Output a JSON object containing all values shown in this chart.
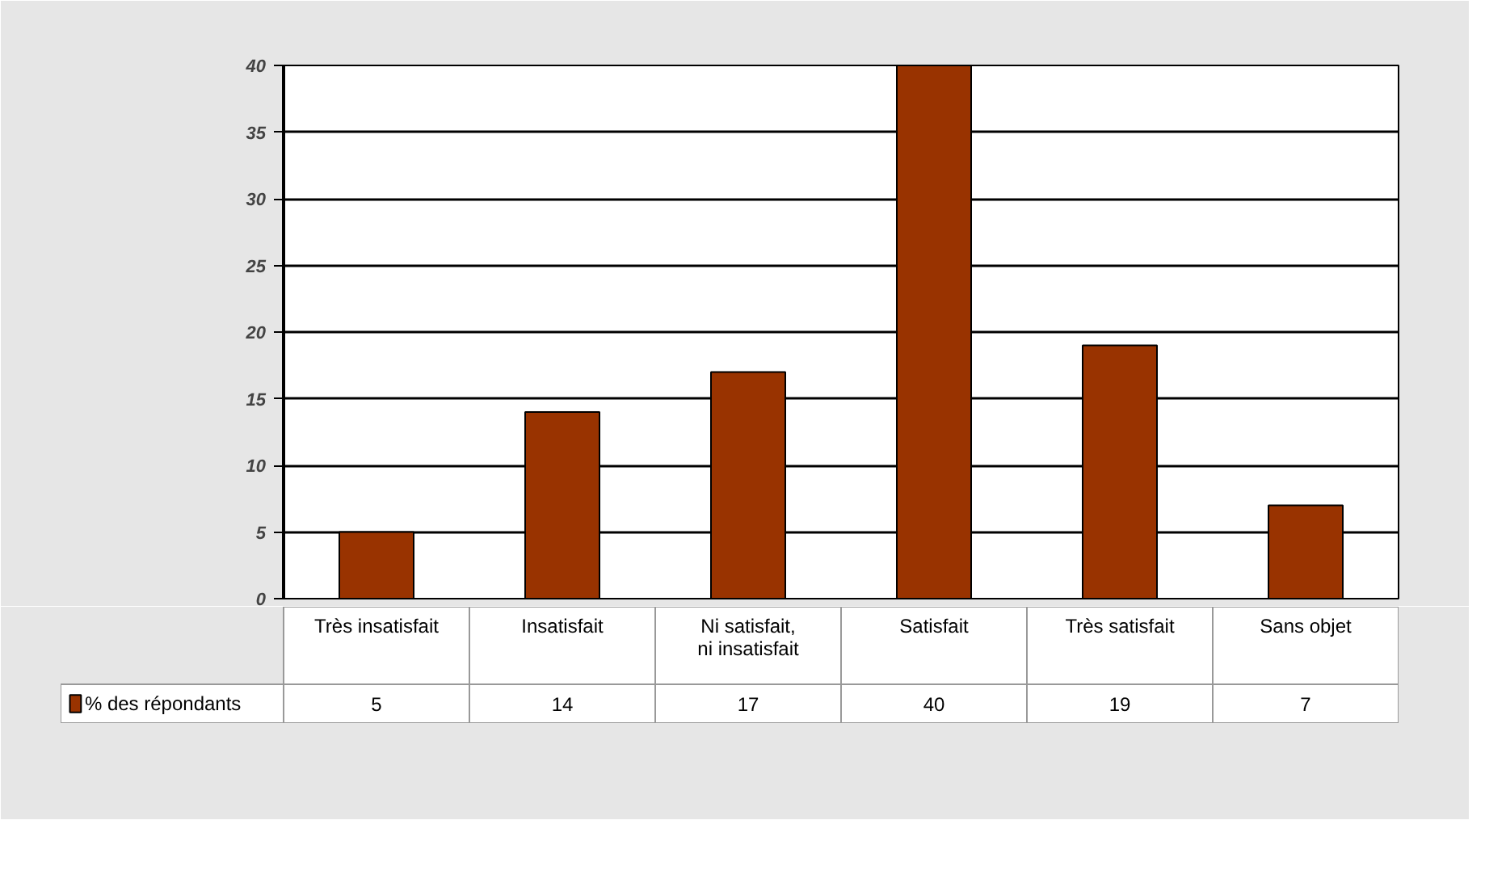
{
  "chart_data": {
    "type": "bar",
    "categories": [
      "Très insatisfait",
      "Insatisfait",
      "Ni satisfait, ni insatisfait",
      "Satisfait",
      "Très satisfait",
      "Sans objet"
    ],
    "series": [
      {
        "name": "% des répondants",
        "color": "#993300",
        "values": [
          5,
          14,
          17,
          40,
          19,
          7
        ]
      }
    ],
    "ylim": [
      0,
      40
    ],
    "yticks": [
      0,
      5,
      10,
      15,
      20,
      25,
      30,
      35,
      40
    ],
    "grid": "y",
    "legend": "bottom left",
    "data_labels": true
  }
}
